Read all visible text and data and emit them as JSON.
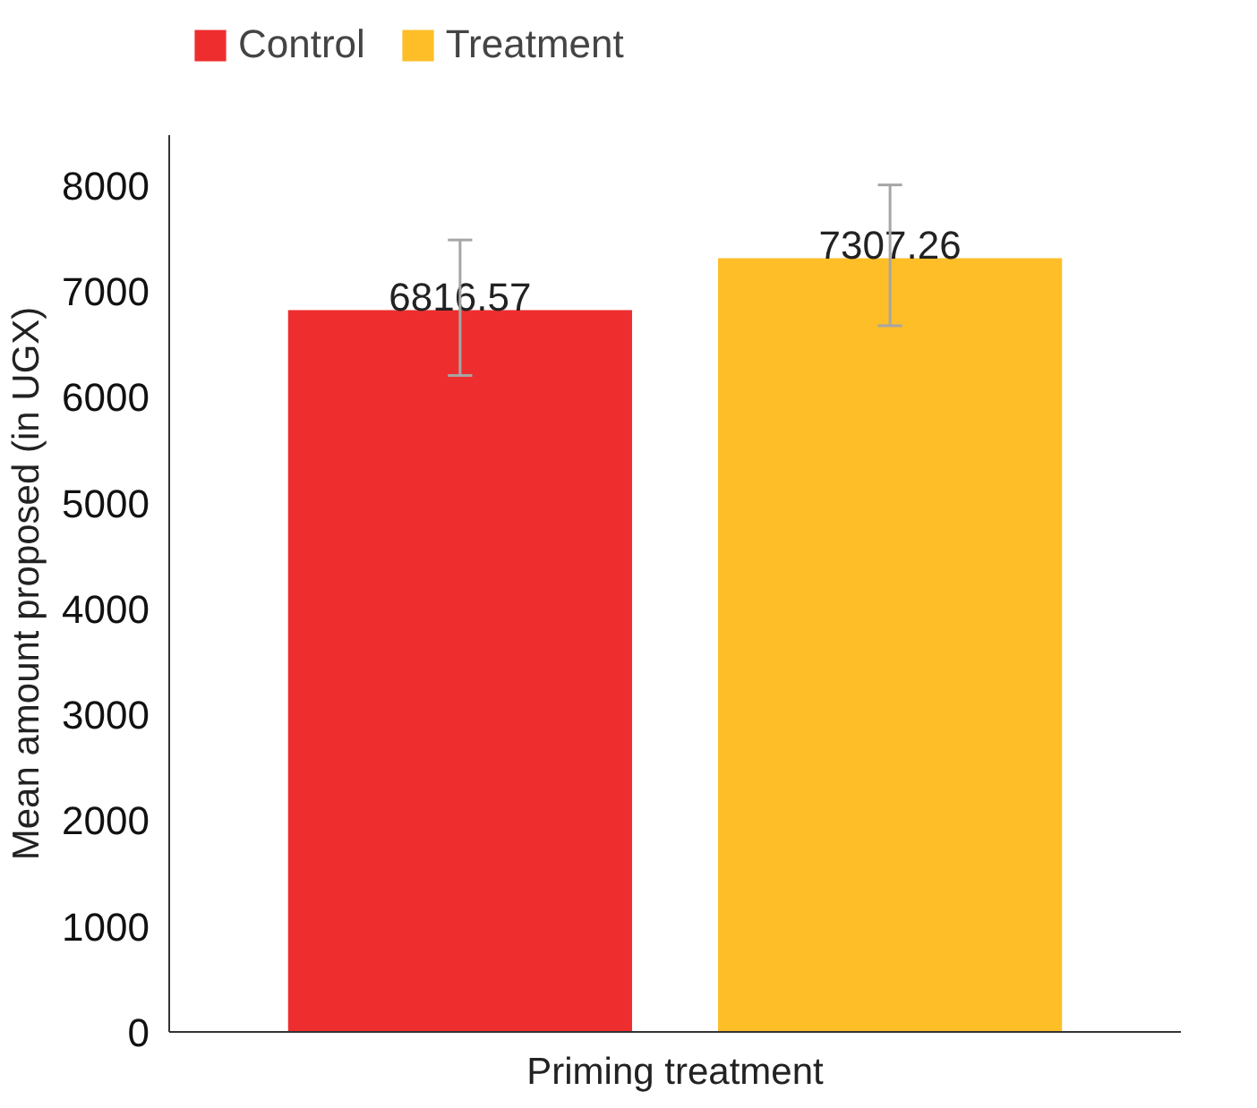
{
  "chart_data": {
    "type": "bar",
    "xlabel": "Priming treatment",
    "ylabel": "Mean amount proposed (in UGX)",
    "categories": [
      null
    ],
    "series": [
      {
        "name": "Control",
        "color": "#ee2e2e",
        "values": [
          6816.57
        ],
        "errors": [
          [
            6200,
            7480
          ]
        ]
      },
      {
        "name": "Treatment",
        "color": "#fdbe28",
        "values": [
          7307.26
        ],
        "errors": [
          [
            6670,
            8000
          ]
        ]
      }
    ],
    "ylim": [
      0,
      8470
    ],
    "yticks": [
      0,
      1000,
      2000,
      3000,
      4000,
      5000,
      6000,
      7000,
      8000
    ],
    "data_labels": true,
    "grid": false,
    "legend": "top left"
  }
}
